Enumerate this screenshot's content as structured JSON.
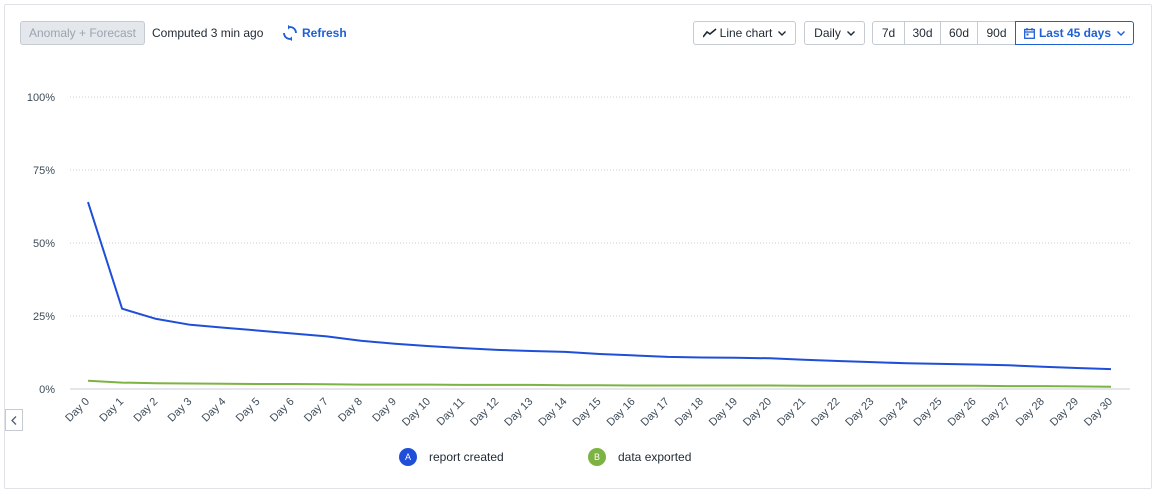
{
  "toolbar": {
    "anomaly_label": "Anomaly + Forecast",
    "computed_label": "Computed 3 min ago",
    "refresh_label": "Refresh",
    "chart_type_label": "Line chart",
    "interval_label": "Daily",
    "ranges": [
      "7d",
      "30d",
      "60d",
      "90d"
    ],
    "active_range_label": "Last 45 days"
  },
  "legend": [
    {
      "badge": "A",
      "label": "report created",
      "color": "#1f4fd8"
    },
    {
      "badge": "B",
      "label": "data exported",
      "color": "#7cb342"
    }
  ],
  "colors": {
    "accent": "#1f5fd6",
    "series_a": "#1f4fd8",
    "series_b": "#7cb342"
  },
  "chart_data": {
    "type": "line",
    "x": [
      "Day 0",
      "Day 1",
      "Day 2",
      "Day 3",
      "Day 4",
      "Day 5",
      "Day 6",
      "Day 7",
      "Day 8",
      "Day 9",
      "Day 10",
      "Day 11",
      "Day 12",
      "Day 13",
      "Day 14",
      "Day 15",
      "Day 16",
      "Day 17",
      "Day 18",
      "Day 19",
      "Day 20",
      "Day 21",
      "Day 22",
      "Day 23",
      "Day 24",
      "Day 25",
      "Day 26",
      "Day 27",
      "Day 28",
      "Day 29",
      "Day 30"
    ],
    "series": [
      {
        "name": "report created",
        "color": "#1f4fd8",
        "values": [
          64,
          27.5,
          24,
          22,
          21,
          20,
          19,
          18,
          16.5,
          15.5,
          14.7,
          14,
          13.4,
          13,
          12.7,
          12,
          11.5,
          11,
          10.8,
          10.7,
          10.5,
          10,
          9.6,
          9.2,
          8.8,
          8.6,
          8.4,
          8.1,
          7.6,
          7.2,
          6.8
        ]
      },
      {
        "name": "data exported",
        "color": "#7cb342",
        "values": [
          2.8,
          2.2,
          2,
          1.9,
          1.8,
          1.7,
          1.7,
          1.6,
          1.5,
          1.5,
          1.5,
          1.4,
          1.4,
          1.4,
          1.3,
          1.3,
          1.2,
          1.2,
          1.2,
          1.2,
          1.2,
          1.1,
          1.1,
          1.1,
          1.1,
          1.1,
          1.1,
          1.0,
          1.0,
          0.9,
          0.8
        ]
      }
    ],
    "y_ticks": [
      "0%",
      "25%",
      "50%",
      "75%",
      "100%"
    ],
    "ylim": [
      0,
      100
    ],
    "grid": true,
    "legend_position": "bottom"
  }
}
